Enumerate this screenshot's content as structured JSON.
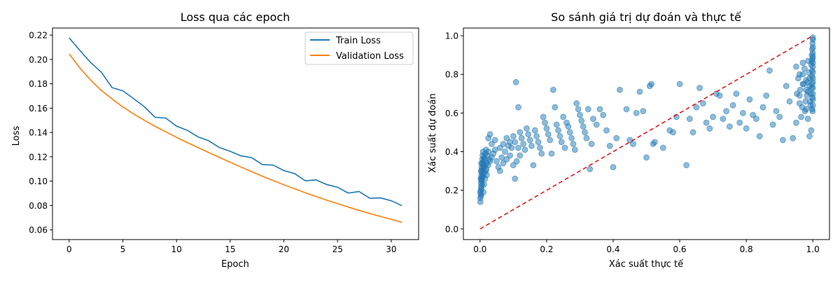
{
  "chart_data": [
    {
      "type": "line",
      "title": "Loss qua các epoch",
      "xlabel": "Epoch",
      "ylabel": "Loss",
      "xlim": [
        -1.55,
        32.55
      ],
      "ylim": [
        0.052,
        0.2258
      ],
      "xticks": [
        0,
        5,
        10,
        15,
        20,
        25,
        30
      ],
      "xtick_labels": [
        "0",
        "5",
        "10",
        "15",
        "20",
        "25",
        "30"
      ],
      "yticks": [
        0.06,
        0.08,
        0.1,
        0.12,
        0.14,
        0.16,
        0.18,
        0.2,
        0.22
      ],
      "ytick_labels": [
        "0.06",
        "0.08",
        "0.10",
        "0.12",
        "0.14",
        "0.16",
        "0.18",
        "0.20",
        "0.22"
      ],
      "grid": false,
      "legend_position": "upper right",
      "x": [
        0,
        1,
        2,
        3,
        4,
        5,
        6,
        7,
        8,
        9,
        10,
        11,
        12,
        13,
        14,
        15,
        16,
        17,
        18,
        19,
        20,
        21,
        22,
        23,
        24,
        25,
        26,
        27,
        28,
        29,
        30,
        31
      ],
      "series": [
        {
          "name": "Train Loss",
          "color": "#1f77b4",
          "values": [
            0.2177,
            0.2074,
            0.1975,
            0.1895,
            0.1768,
            0.1742,
            0.1678,
            0.1612,
            0.1525,
            0.1518,
            0.1452,
            0.1418,
            0.1364,
            0.1332,
            0.1276,
            0.1245,
            0.1208,
            0.1193,
            0.1136,
            0.1132,
            0.1087,
            0.1062,
            0.1003,
            0.101,
            0.0972,
            0.095,
            0.0902,
            0.0915,
            0.086,
            0.0862,
            0.0839,
            0.0798
          ]
        },
        {
          "name": "Validation Loss",
          "color": "#ff7f0e",
          "values": [
            0.2045,
            0.193,
            0.183,
            0.1745,
            0.1675,
            0.161,
            0.1552,
            0.15,
            0.145,
            0.1405,
            0.136,
            0.1317,
            0.1276,
            0.1235,
            0.1195,
            0.1155,
            0.1116,
            0.1078,
            0.104,
            0.1005,
            0.097,
            0.0937,
            0.0905,
            0.0874,
            0.0844,
            0.0815,
            0.0787,
            0.076,
            0.0734,
            0.071,
            0.0686,
            0.0662
          ]
        }
      ]
    },
    {
      "type": "scatter",
      "title": "So sánh giá trị dự đoán và thực tế",
      "xlabel": "Xác suất thực tế",
      "ylabel": "Xác suất dự đoán",
      "xlim": [
        -0.05,
        1.05
      ],
      "ylim": [
        -0.055,
        1.04
      ],
      "xticks": [
        0.0,
        0.2,
        0.4,
        0.6,
        0.8,
        1.0
      ],
      "xtick_labels": [
        "0.0",
        "0.2",
        "0.4",
        "0.6",
        "0.8",
        "1.0"
      ],
      "yticks": [
        0.0,
        0.2,
        0.4,
        0.6,
        0.8,
        1.0
      ],
      "ytick_labels": [
        "0.0",
        "0.2",
        "0.4",
        "0.6",
        "0.8",
        "1.0"
      ],
      "grid": false,
      "point_color": "#1f77b4",
      "reference_line": {
        "from": [
          0,
          0
        ],
        "to": [
          1,
          1
        ],
        "color": "#e41a1c",
        "style": "dashed"
      },
      "points": [
        [
          0.001,
          0.14
        ],
        [
          0.001,
          0.16
        ],
        [
          0.002,
          0.18
        ],
        [
          0.002,
          0.2
        ],
        [
          0.003,
          0.22
        ],
        [
          0.003,
          0.24
        ],
        [
          0.004,
          0.26
        ],
        [
          0.004,
          0.28
        ],
        [
          0.005,
          0.3
        ],
        [
          0.005,
          0.32
        ],
        [
          0.006,
          0.34
        ],
        [
          0.007,
          0.36
        ],
        [
          0.008,
          0.38
        ],
        [
          0.009,
          0.4
        ],
        [
          0.003,
          0.17
        ],
        [
          0.004,
          0.21
        ],
        [
          0.005,
          0.25
        ],
        [
          0.006,
          0.27
        ],
        [
          0.007,
          0.29
        ],
        [
          0.008,
          0.31
        ],
        [
          0.009,
          0.33
        ],
        [
          0.01,
          0.35
        ],
        [
          0.012,
          0.37
        ],
        [
          0.014,
          0.36
        ],
        [
          0.016,
          0.39
        ],
        [
          0.018,
          0.41
        ],
        [
          0.02,
          0.34
        ],
        [
          0.022,
          0.38
        ],
        [
          0.025,
          0.4
        ],
        [
          0.028,
          0.36
        ],
        [
          0.01,
          0.19
        ],
        [
          0.012,
          0.23
        ],
        [
          0.015,
          0.26
        ],
        [
          0.017,
          0.3
        ],
        [
          0.02,
          0.28
        ],
        [
          0.001,
          0.19
        ],
        [
          0.002,
          0.26
        ],
        [
          0.003,
          0.3
        ],
        [
          0.004,
          0.34
        ],
        [
          0.006,
          0.23
        ],
        [
          0.008,
          0.27
        ],
        [
          0.011,
          0.32
        ],
        [
          0.013,
          0.29
        ],
        [
          0.015,
          0.33
        ],
        [
          0.019,
          0.31
        ],
        [
          0.024,
          0.33
        ],
        [
          0.03,
          0.35
        ],
        [
          0.035,
          0.37
        ],
        [
          0.04,
          0.39
        ],
        [
          0.045,
          0.41
        ],
        [
          0.05,
          0.35
        ],
        [
          0.055,
          0.32
        ],
        [
          0.06,
          0.3
        ],
        [
          0.065,
          0.37
        ],
        [
          0.07,
          0.34
        ],
        [
          0.075,
          0.4
        ],
        [
          0.08,
          0.36
        ],
        [
          0.085,
          0.43
        ],
        [
          0.09,
          0.38
        ],
        [
          0.095,
          0.42
        ],
        [
          0.1,
          0.33
        ],
        [
          0.105,
          0.45
        ],
        [
          0.11,
          0.35
        ],
        [
          0.115,
          0.42
        ],
        [
          0.12,
          0.38
        ],
        [
          0.025,
          0.47
        ],
        [
          0.03,
          0.49
        ],
        [
          0.035,
          0.44
        ],
        [
          0.045,
          0.46
        ],
        [
          0.06,
          0.42
        ],
        [
          0.07,
          0.44
        ],
        [
          0.08,
          0.47
        ],
        [
          0.09,
          0.45
        ],
        [
          0.1,
          0.48
        ],
        [
          0.105,
          0.26
        ],
        [
          0.108,
          0.76
        ],
        [
          0.115,
          0.63
        ],
        [
          0.12,
          0.5
        ],
        [
          0.125,
          0.47
        ],
        [
          0.13,
          0.44
        ],
        [
          0.135,
          0.41
        ],
        [
          0.14,
          0.52
        ],
        [
          0.145,
          0.49
        ],
        [
          0.15,
          0.46
        ],
        [
          0.155,
          0.43
        ],
        [
          0.16,
          0.33
        ],
        [
          0.165,
          0.51
        ],
        [
          0.17,
          0.48
        ],
        [
          0.175,
          0.45
        ],
        [
          0.18,
          0.42
        ],
        [
          0.185,
          0.39
        ],
        [
          0.19,
          0.58
        ],
        [
          0.195,
          0.55
        ],
        [
          0.2,
          0.52
        ],
        [
          0.205,
          0.49
        ],
        [
          0.21,
          0.46
        ],
        [
          0.215,
          0.39
        ],
        [
          0.22,
          0.72
        ],
        [
          0.225,
          0.63
        ],
        [
          0.23,
          0.54
        ],
        [
          0.235,
          0.51
        ],
        [
          0.24,
          0.48
        ],
        [
          0.245,
          0.45
        ],
        [
          0.25,
          0.58
        ],
        [
          0.255,
          0.42
        ],
        [
          0.26,
          0.55
        ],
        [
          0.265,
          0.53
        ],
        [
          0.27,
          0.5
        ],
        [
          0.275,
          0.47
        ],
        [
          0.28,
          0.44
        ],
        [
          0.285,
          0.41
        ],
        [
          0.29,
          0.65
        ],
        [
          0.295,
          0.62
        ],
        [
          0.3,
          0.59
        ],
        [
          0.305,
          0.56
        ],
        [
          0.31,
          0.53
        ],
        [
          0.315,
          0.5
        ],
        [
          0.32,
          0.47
        ],
        [
          0.325,
          0.62
        ],
        [
          0.33,
          0.31
        ],
        [
          0.335,
          0.44
        ],
        [
          0.34,
          0.57
        ],
        [
          0.35,
          0.54
        ],
        [
          0.36,
          0.62
        ],
        [
          0.37,
          0.59
        ],
        [
          0.38,
          0.51
        ],
        [
          0.39,
          0.43
        ],
        [
          0.4,
          0.32
        ],
        [
          0.41,
          0.47
        ],
        [
          0.42,
          0.72
        ],
        [
          0.44,
          0.62
        ],
        [
          0.45,
          0.46
        ],
        [
          0.46,
          0.44
        ],
        [
          0.47,
          0.6
        ],
        [
          0.48,
          0.71
        ],
        [
          0.49,
          0.61
        ],
        [
          0.5,
          0.37
        ],
        [
          0.51,
          0.74
        ],
        [
          0.515,
          0.75
        ],
        [
          0.52,
          0.44
        ],
        [
          0.525,
          0.45
        ],
        [
          0.55,
          0.42
        ],
        [
          0.57,
          0.51
        ],
        [
          0.58,
          0.5
        ],
        [
          0.59,
          0.58
        ],
        [
          0.6,
          0.75
        ],
        [
          0.62,
          0.33
        ],
        [
          0.63,
          0.57
        ],
        [
          0.64,
          0.5
        ],
        [
          0.65,
          0.63
        ],
        [
          0.66,
          0.73
        ],
        [
          0.67,
          0.65
        ],
        [
          0.68,
          0.55
        ],
        [
          0.69,
          0.52
        ],
        [
          0.7,
          0.58
        ],
        [
          0.71,
          0.7
        ],
        [
          0.72,
          0.69
        ],
        [
          0.73,
          0.57
        ],
        [
          0.74,
          0.61
        ],
        [
          0.75,
          0.53
        ],
        [
          0.76,
          0.64
        ],
        [
          0.77,
          0.7
        ],
        [
          0.78,
          0.55
        ],
        [
          0.79,
          0.6
        ],
        [
          0.8,
          0.52
        ],
        [
          0.81,
          0.67
        ],
        [
          0.82,
          0.59
        ],
        [
          0.83,
          0.57
        ],
        [
          0.84,
          0.48
        ],
        [
          0.85,
          0.63
        ],
        [
          0.86,
          0.69
        ],
        [
          0.87,
          0.82
        ],
        [
          0.88,
          0.54
        ],
        [
          0.89,
          0.61
        ],
        [
          0.9,
          0.58
        ],
        [
          0.91,
          0.46
        ],
        [
          0.92,
          0.74
        ],
        [
          0.93,
          0.66
        ],
        [
          0.94,
          0.47
        ],
        [
          0.95,
          0.55
        ],
        [
          0.96,
          0.69
        ],
        [
          0.97,
          0.75
        ],
        [
          0.98,
          0.62
        ],
        [
          0.985,
          0.57
        ],
        [
          0.99,
          0.48
        ],
        [
          0.995,
          0.51
        ],
        [
          0.998,
          0.62
        ],
        [
          0.95,
          0.84
        ],
        [
          0.96,
          0.8
        ],
        [
          0.97,
          0.86
        ],
        [
          0.98,
          0.77
        ],
        [
          0.985,
          0.71
        ],
        [
          0.99,
          0.74
        ],
        [
          0.992,
          0.66
        ],
        [
          0.995,
          0.85
        ],
        [
          0.997,
          0.9
        ],
        [
          0.998,
          0.93
        ],
        [
          0.999,
          0.96
        ],
        [
          1.0,
          0.99
        ],
        [
          1.0,
          0.98
        ],
        [
          0.999,
          0.88
        ],
        [
          0.998,
          0.82
        ],
        [
          0.997,
          0.79
        ],
        [
          0.996,
          0.73
        ],
        [
          0.994,
          0.7
        ],
        [
          0.993,
          0.64
        ],
        [
          0.99,
          0.78
        ],
        [
          0.988,
          0.81
        ],
        [
          0.986,
          0.87
        ],
        [
          0.984,
          0.76
        ],
        [
          0.982,
          0.69
        ],
        [
          0.98,
          0.72
        ],
        [
          0.978,
          0.66
        ],
        [
          0.976,
          0.61
        ],
        [
          0.975,
          0.83
        ],
        [
          0.972,
          0.75
        ],
        [
          0.97,
          0.8
        ],
        [
          0.968,
          0.63
        ],
        [
          0.965,
          0.58
        ],
        [
          0.962,
          0.72
        ],
        [
          0.96,
          0.65
        ],
        [
          0.956,
          0.78
        ],
        [
          0.952,
          0.7
        ],
        [
          1.0,
          0.94
        ],
        [
          1.0,
          0.91
        ],
        [
          1.0,
          0.89
        ],
        [
          1.0,
          0.86
        ],
        [
          1.0,
          0.84
        ],
        [
          1.0,
          0.81
        ],
        [
          1.0,
          0.78
        ],
        [
          1.0,
          0.76
        ],
        [
          1.0,
          0.73
        ],
        [
          1.0,
          0.7
        ],
        [
          1.0,
          0.67
        ],
        [
          1.0,
          0.64
        ],
        [
          0.999,
          0.61
        ],
        [
          0.999,
          0.68
        ],
        [
          0.998,
          0.75
        ],
        [
          0.997,
          0.87
        ]
      ]
    }
  ]
}
